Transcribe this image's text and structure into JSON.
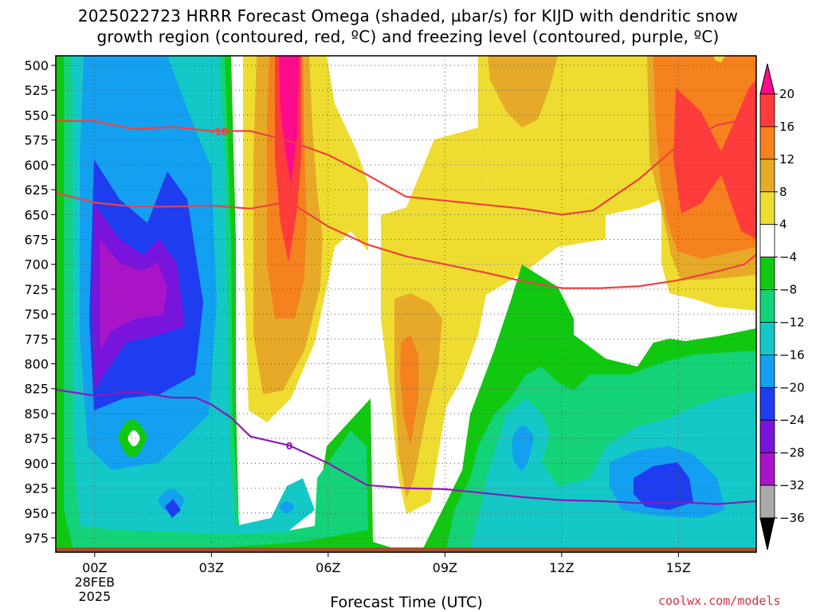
{
  "chart_data": {
    "type": "heatmap",
    "title_line1": "2025022723 HRRR Forecast Omega (shaded, µbar/s) for KIJD with dendritic snow",
    "title_line2": "growth region (contoured, red, ºC) and freezing level (contoured, purple, ºC)",
    "xlabel": "Forecast Time (UTC)",
    "credit": "coolwx.com/models",
    "x_range_hours": [
      -1,
      17
    ],
    "y_range_hpa": [
      500,
      985
    ],
    "y_ticks": [
      500,
      525,
      550,
      575,
      600,
      625,
      650,
      675,
      700,
      725,
      750,
      775,
      800,
      825,
      850,
      875,
      900,
      925,
      950,
      975
    ],
    "x_ticks": [
      {
        "hour": 0,
        "label": "00Z",
        "sub1": "28FEB",
        "sub2": "2025"
      },
      {
        "hour": 3,
        "label": "03Z",
        "sub1": "",
        "sub2": ""
      },
      {
        "hour": 6,
        "label": "06Z",
        "sub1": "",
        "sub2": ""
      },
      {
        "hour": 9,
        "label": "09Z",
        "sub1": "",
        "sub2": ""
      },
      {
        "hour": 12,
        "label": "12Z",
        "sub1": "",
        "sub2": ""
      },
      {
        "hour": 15,
        "label": "15Z",
        "sub1": "",
        "sub2": ""
      }
    ],
    "colorbar": {
      "levels": [
        -36,
        -32,
        -28,
        -24,
        -20,
        -16,
        -12,
        -8,
        -4,
        4,
        8,
        12,
        16,
        20
      ],
      "labels": [
        "20",
        "16",
        "12",
        "8",
        "4",
        "−4",
        "−8",
        "−12",
        "−16",
        "−20",
        "−24",
        "−28",
        "−32",
        "−36"
      ],
      "colors_top_to_bottom": [
        "#ff0a8c",
        "#ff3c3c",
        "#f5821e",
        "#e6aa28",
        "#eedd30",
        "#ffffff",
        "#10c810",
        "#14d278",
        "#14c8c8",
        "#14a0f0",
        "#1e3cf0",
        "#7814dc",
        "#aa14c8",
        "#aaaaaa",
        "#000000"
      ]
    },
    "contours": [
      {
        "name": "-18",
        "label": "-18",
        "color": "#f04040",
        "points": [
          [
            -1,
            556
          ],
          [
            0,
            556
          ],
          [
            1,
            564
          ],
          [
            2,
            562
          ],
          [
            3,
            566
          ],
          [
            4,
            566
          ],
          [
            5,
            576
          ],
          [
            6,
            590
          ],
          [
            7,
            610
          ],
          [
            8,
            632
          ],
          [
            9,
            636
          ],
          [
            10,
            640
          ],
          [
            11,
            644
          ],
          [
            12,
            650
          ],
          [
            12.8,
            646
          ],
          [
            14,
            614
          ],
          [
            15,
            580
          ],
          [
            16,
            560
          ],
          [
            16.5,
            556
          ],
          [
            17,
            556
          ]
        ]
      },
      {
        "name": "-12",
        "label": "",
        "color": "#f04040",
        "points": [
          [
            -1,
            628
          ],
          [
            0,
            638
          ],
          [
            1,
            642
          ],
          [
            2,
            642
          ],
          [
            3,
            641
          ],
          [
            4,
            644
          ],
          [
            5,
            637
          ],
          [
            6,
            662
          ],
          [
            7,
            680
          ],
          [
            8,
            692
          ],
          [
            9,
            700
          ],
          [
            10,
            708
          ],
          [
            11,
            717
          ],
          [
            12,
            724
          ],
          [
            13,
            724
          ],
          [
            14,
            722
          ],
          [
            15,
            716
          ],
          [
            16,
            707
          ],
          [
            16.7,
            700
          ],
          [
            17,
            690
          ]
        ]
      },
      {
        "name": "0",
        "label": "0",
        "color": "#8a1ab8",
        "points": [
          [
            -1,
            826
          ],
          [
            0,
            832
          ],
          [
            1,
            828
          ],
          [
            2,
            834
          ],
          [
            2.6,
            834
          ],
          [
            3,
            841
          ],
          [
            3.5,
            854
          ],
          [
            4,
            873
          ],
          [
            5,
            882
          ],
          [
            6,
            900
          ],
          [
            7,
            922
          ],
          [
            8,
            925
          ],
          [
            9,
            926
          ],
          [
            10,
            930
          ],
          [
            11,
            934
          ],
          [
            12,
            937
          ],
          [
            13,
            938
          ],
          [
            14,
            940
          ],
          [
            15,
            939
          ],
          [
            16,
            941
          ],
          [
            17,
            938
          ]
        ]
      }
    ]
  }
}
